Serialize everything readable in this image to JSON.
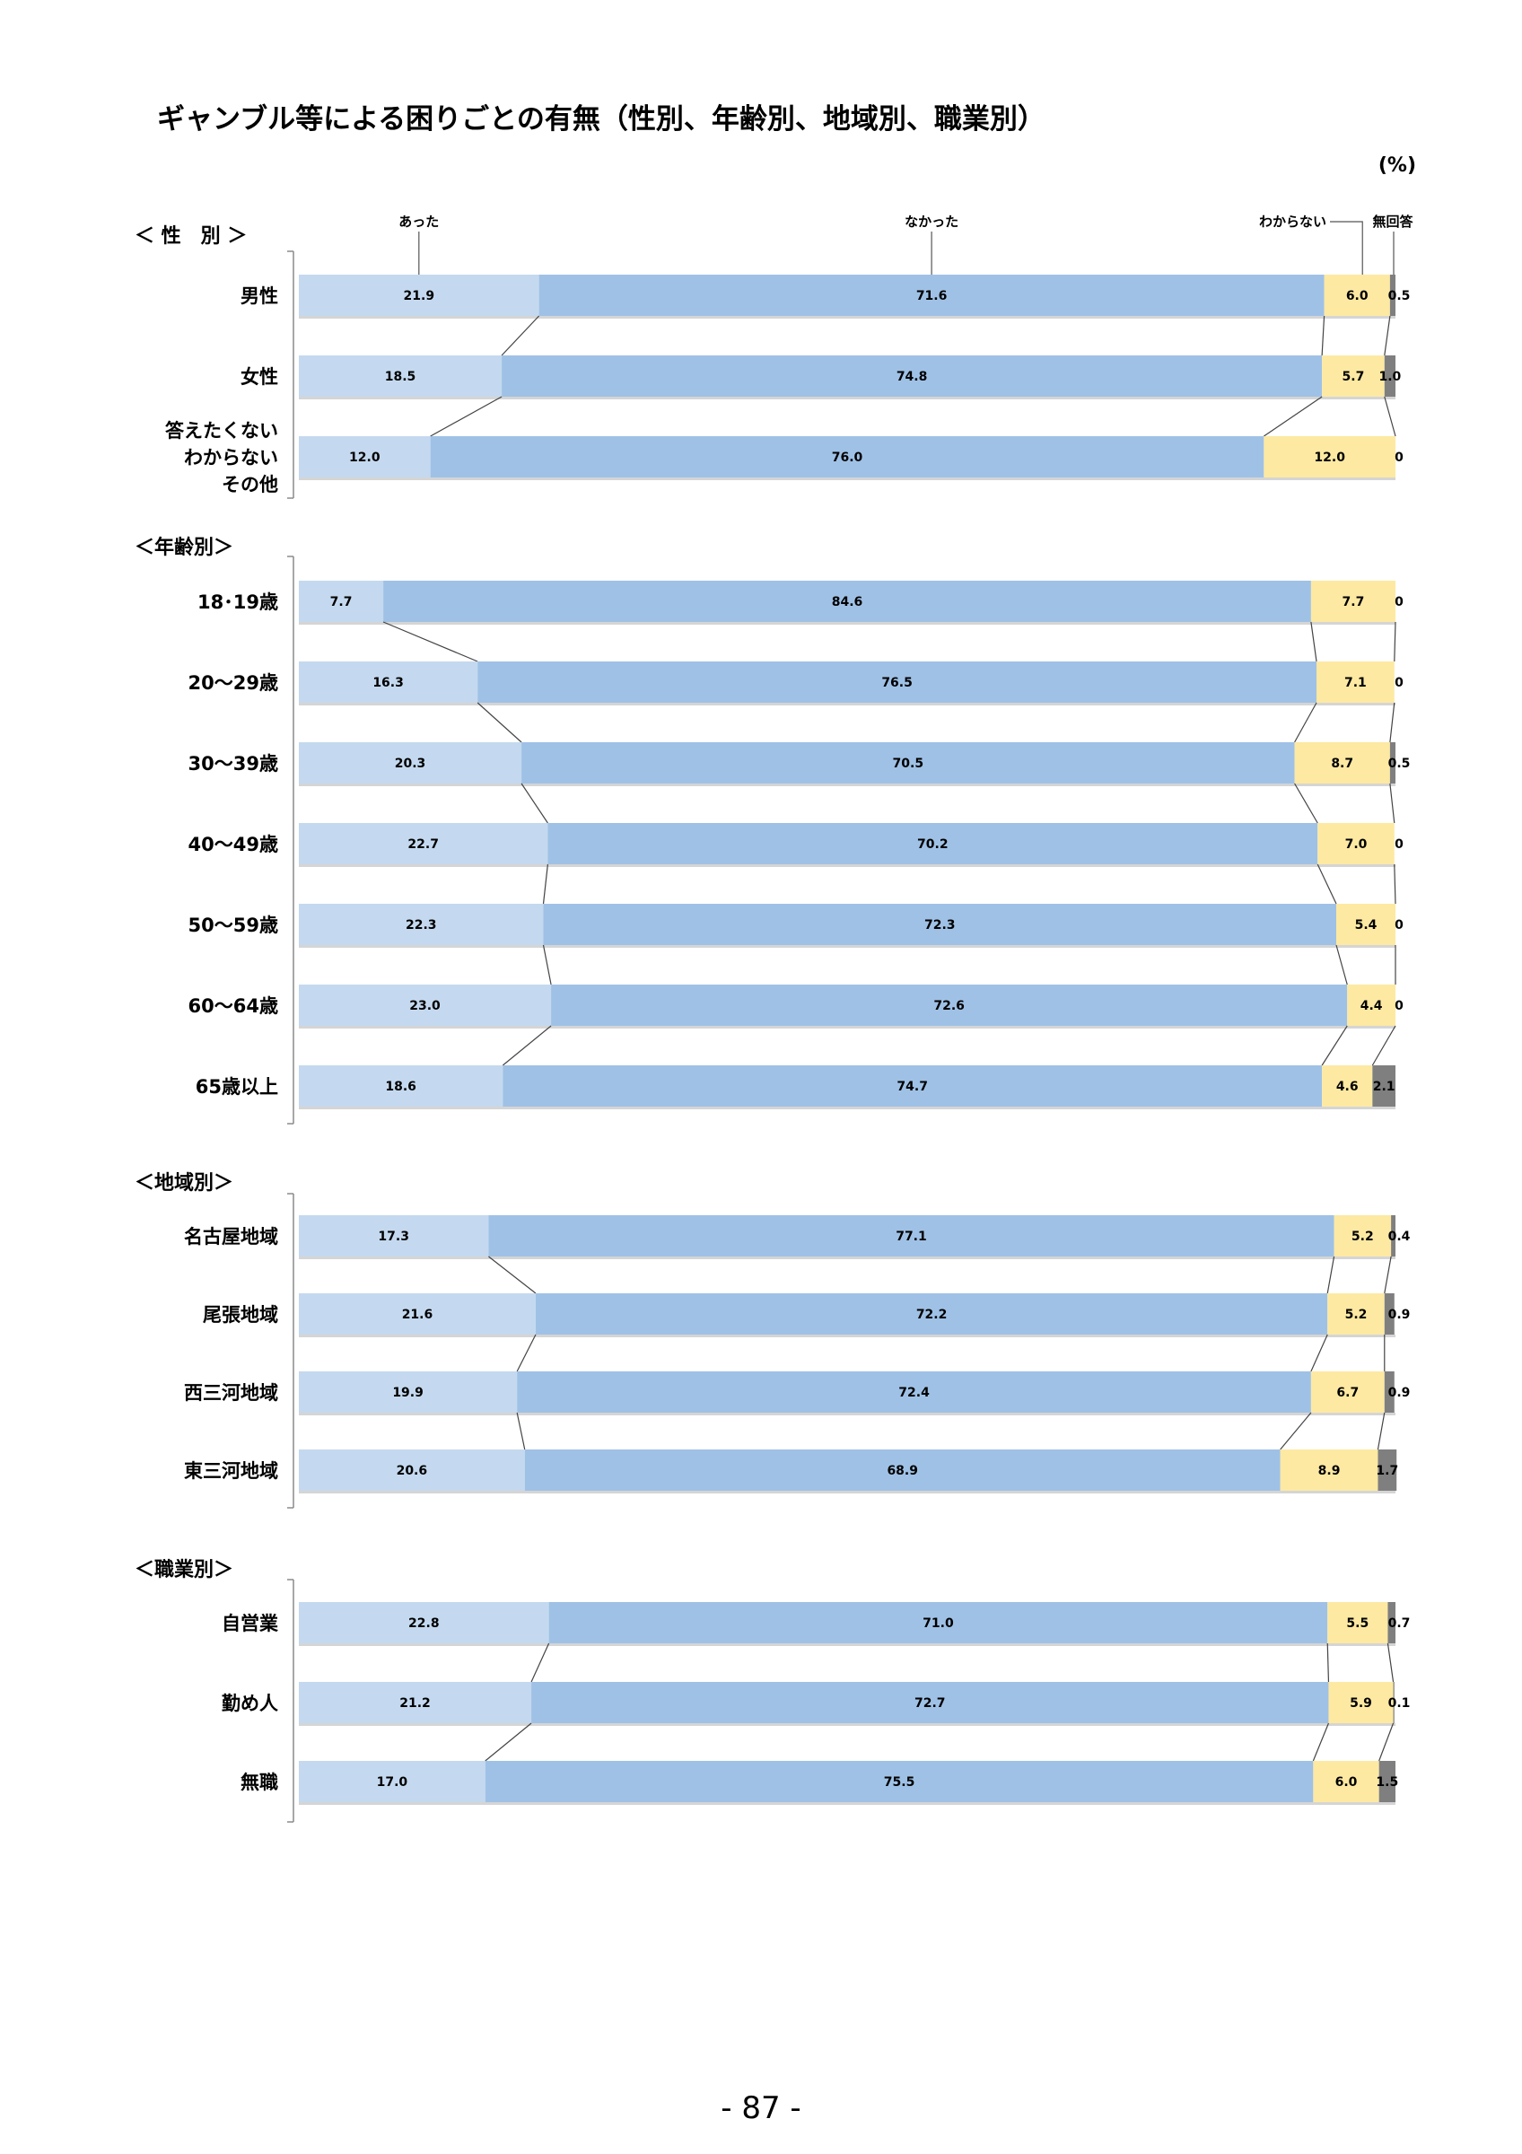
{
  "page": {
    "page_number": "- 87 -"
  },
  "chart_data": {
    "type": "bar",
    "orientation": "horizontal",
    "stacked": true,
    "title": "ギャンブル等による困りごとの有無（性別、年齢別、地域別、職業別）",
    "unit_label": "(%)",
    "xlim": [
      0,
      100
    ],
    "legend_labels": [
      "あった",
      "なかった",
      "わからない",
      "無回答"
    ],
    "colors": [
      "#c4d9ef",
      "#9fc1e6",
      "#fde9a2",
      "#7f7f7f"
    ],
    "groups": [
      {
        "label": "＜ 性　別 ＞",
        "rows": [
          {
            "label": [
              "男性"
            ],
            "values": [
              21.9,
              71.6,
              6.0,
              0.5
            ],
            "value_labels": [
              "21.9",
              "71.6",
              "6.0",
              "0.5"
            ]
          },
          {
            "label": [
              "女性"
            ],
            "values": [
              18.5,
              74.8,
              5.7,
              1.0
            ],
            "value_labels": [
              "18.5",
              "74.8",
              "5.7",
              "1.0"
            ]
          },
          {
            "label": [
              "答えたくない",
              "わからない",
              "その他"
            ],
            "values": [
              12.0,
              76.0,
              12.0,
              0
            ],
            "value_labels": [
              "12.0",
              "76.0",
              "12.0",
              "0"
            ]
          }
        ]
      },
      {
        "label": "＜年齢別＞",
        "rows": [
          {
            "label": [
              "18･19歳"
            ],
            "values": [
              7.7,
              84.6,
              7.7,
              0
            ],
            "value_labels": [
              "7.7",
              "84.6",
              "7.7",
              "0"
            ]
          },
          {
            "label": [
              "20～29歳"
            ],
            "values": [
              16.3,
              76.5,
              7.1,
              0
            ],
            "value_labels": [
              "16.3",
              "76.5",
              "7.1",
              "0"
            ]
          },
          {
            "label": [
              "30～39歳"
            ],
            "values": [
              20.3,
              70.5,
              8.7,
              0.5
            ],
            "value_labels": [
              "20.3",
              "70.5",
              "8.7",
              "0.5"
            ]
          },
          {
            "label": [
              "40～49歳"
            ],
            "values": [
              22.7,
              70.2,
              7.0,
              0
            ],
            "value_labels": [
              "22.7",
              "70.2",
              "7.0",
              "0"
            ]
          },
          {
            "label": [
              "50～59歳"
            ],
            "values": [
              22.3,
              72.3,
              5.4,
              0
            ],
            "value_labels": [
              "22.3",
              "72.3",
              "5.4",
              "0"
            ]
          },
          {
            "label": [
              "60～64歳"
            ],
            "values": [
              23.0,
              72.6,
              4.4,
              0
            ],
            "value_labels": [
              "23.0",
              "72.6",
              "4.4",
              "0"
            ]
          },
          {
            "label": [
              "65歳以上"
            ],
            "values": [
              18.6,
              74.7,
              4.6,
              2.1
            ],
            "value_labels": [
              "18.6",
              "74.7",
              "4.6",
              "2.1"
            ]
          }
        ]
      },
      {
        "label": "＜地域別＞",
        "rows": [
          {
            "label": [
              "名古屋地域"
            ],
            "values": [
              17.3,
              77.1,
              5.2,
              0.4
            ],
            "value_labels": [
              "17.3",
              "77.1",
              "5.2",
              "0.4"
            ]
          },
          {
            "label": [
              "尾張地域"
            ],
            "values": [
              21.6,
              72.2,
              5.2,
              0.9
            ],
            "value_labels": [
              "21.6",
              "72.2",
              "5.2",
              "0.9"
            ]
          },
          {
            "label": [
              "西三河地域"
            ],
            "values": [
              19.9,
              72.4,
              6.7,
              0.9
            ],
            "value_labels": [
              "19.9",
              "72.4",
              "6.7",
              "0.9"
            ]
          },
          {
            "label": [
              "東三河地域"
            ],
            "values": [
              20.6,
              68.9,
              8.9,
              1.7
            ],
            "value_labels": [
              "20.6",
              "68.9",
              "8.9",
              "1.7"
            ]
          }
        ]
      },
      {
        "label": "＜職業別＞",
        "rows": [
          {
            "label": [
              "自営業"
            ],
            "values": [
              22.8,
              71.0,
              5.5,
              0.7
            ],
            "value_labels": [
              "22.8",
              "71.0",
              "5.5",
              "0.7"
            ]
          },
          {
            "label": [
              "勤め人"
            ],
            "values": [
              21.2,
              72.7,
              5.9,
              0.1
            ],
            "value_labels": [
              "21.2",
              "72.7",
              "5.9",
              "0.1"
            ]
          },
          {
            "label": [
              "無職"
            ],
            "values": [
              17.0,
              75.5,
              6.0,
              1.5
            ],
            "value_labels": [
              "17.0",
              "75.5",
              "6.0",
              "1.5"
            ]
          }
        ]
      }
    ]
  }
}
